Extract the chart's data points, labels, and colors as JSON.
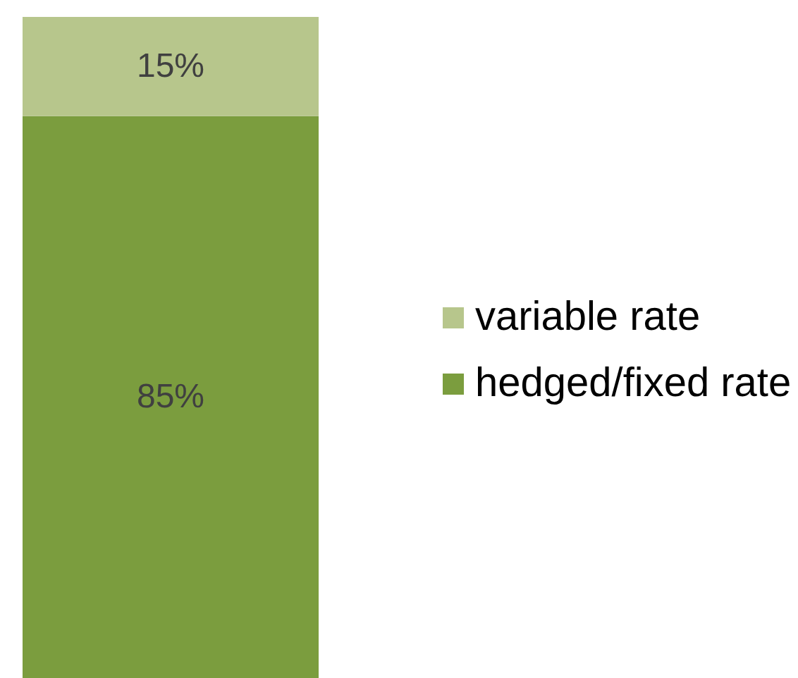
{
  "chart_data": {
    "type": "bar",
    "stacked": true,
    "categories": [
      null
    ],
    "series": [
      {
        "name": "hedged/fixed rate",
        "color": "#7b9d3e",
        "values": [
          85
        ],
        "value_labels": [
          "85%"
        ]
      },
      {
        "name": "variable rate",
        "color": "#b7c68c",
        "values": [
          15
        ],
        "value_labels": [
          "15%"
        ]
      }
    ],
    "ylim": [
      0,
      100
    ],
    "tick_labels": false,
    "legend": "right"
  }
}
